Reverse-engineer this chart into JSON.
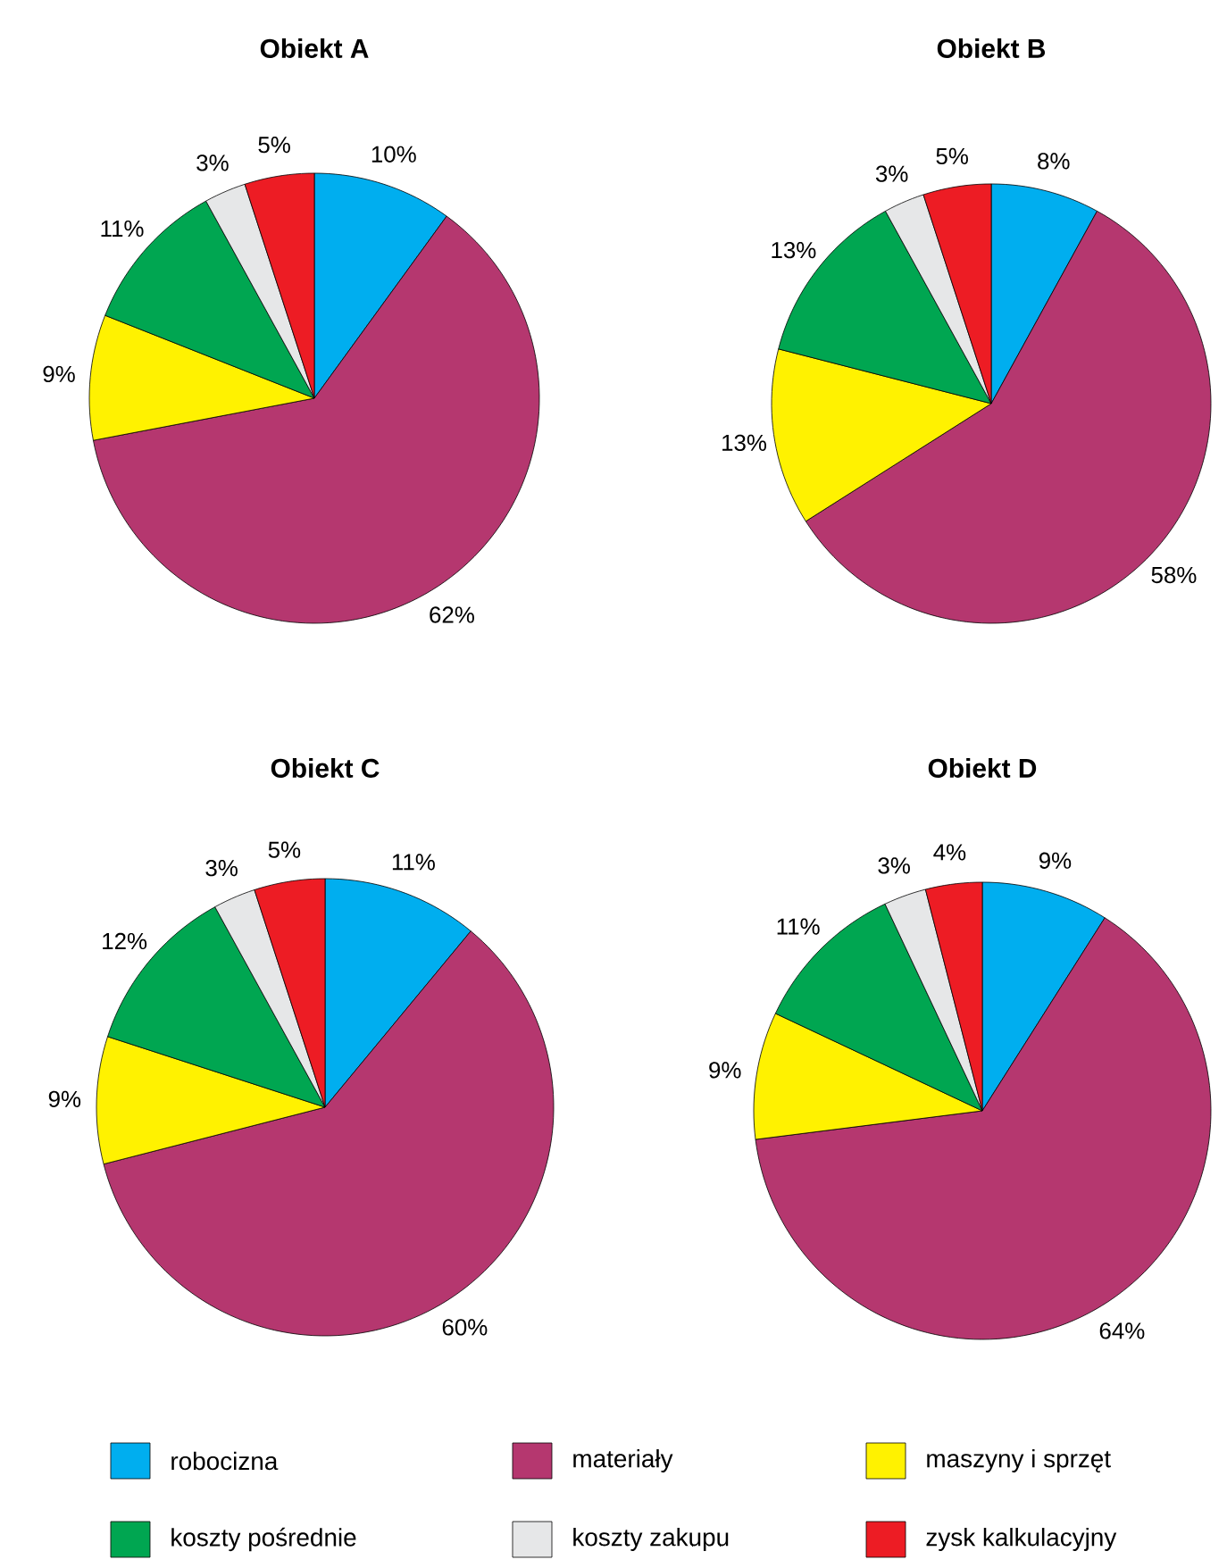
{
  "chart_data": [
    {
      "type": "pie",
      "title": "Obiekt A",
      "values": [
        10,
        62,
        9,
        11,
        3,
        5
      ],
      "colors": [
        "#00aeef",
        "#b5376f",
        "#fff200",
        "#00a651",
        "#e6e7e8",
        "#ed1c24"
      ],
      "value_labels": [
        "10%",
        "62%",
        "9%",
        "11%",
        "3%",
        "5%"
      ]
    },
    {
      "type": "pie",
      "title": "Obiekt B",
      "values": [
        8,
        58,
        13,
        13,
        3,
        5
      ],
      "colors": [
        "#00aeef",
        "#b5376f",
        "#fff200",
        "#00a651",
        "#e6e7e8",
        "#ed1c24"
      ],
      "value_labels": [
        "8%",
        "58%",
        "13%",
        "13%",
        "3%",
        "5%"
      ]
    },
    {
      "type": "pie",
      "title": "Obiekt C",
      "values": [
        11,
        60,
        9,
        12,
        3,
        5
      ],
      "colors": [
        "#00aeef",
        "#b5376f",
        "#fff200",
        "#00a651",
        "#e6e7e8",
        "#ed1c24"
      ],
      "value_labels": [
        "11%",
        "60%",
        "9%",
        "12%",
        "3%",
        "5%"
      ]
    },
    {
      "type": "pie",
      "title": "Obiekt D",
      "categories": [
        "robocizna",
        "materiały",
        "maszyny i sprzęt",
        "koszty pośrednie",
        "koszty zakupu",
        "zysk kalkulacyjny"
      ],
      "values": [
        9,
        64,
        9,
        11,
        3,
        4
      ],
      "colors": [
        "#00aeef",
        "#b5376f",
        "#fff200",
        "#00a651",
        "#e6e7e8",
        "#ed1c24"
      ],
      "value_labels": [
        "9%",
        "64%",
        "9%",
        "11%",
        "3%",
        "4%"
      ],
      "legend": "bottom"
    }
  ]
}
